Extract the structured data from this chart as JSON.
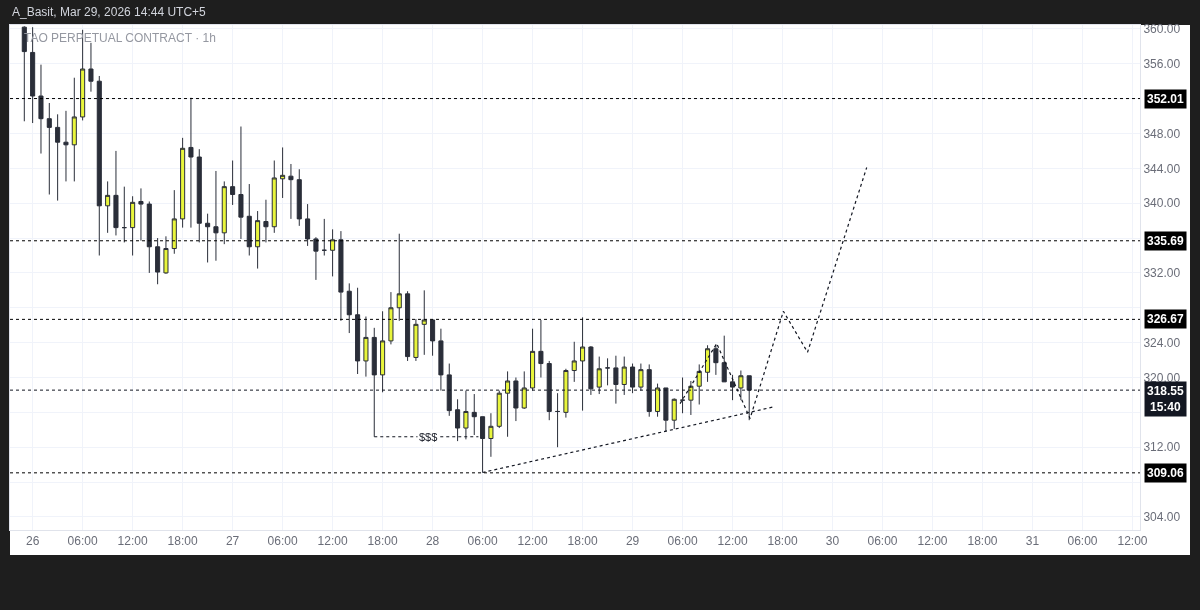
{
  "chart_data": {
    "type": "candlestick",
    "title": "TAO PERPETUAL CONTRACT · 1h",
    "annotations": [
      "A_Basit, Mar 29, 2026 14:44 UTC+5",
      {
        "text": "$$$",
        "x": "2026-03-27T23:30",
        "y": 313.2
      }
    ],
    "x": [
      "2026-03-25T23:00",
      "2026-03-26T00:00",
      "2026-03-26T01:00",
      "2026-03-26T02:00",
      "2026-03-26T03:00",
      "2026-03-26T04:00",
      "2026-03-26T05:00",
      "2026-03-26T06:00",
      "2026-03-26T07:00",
      "2026-03-26T08:00",
      "2026-03-26T09:00",
      "2026-03-26T10:00",
      "2026-03-26T11:00",
      "2026-03-26T12:00",
      "2026-03-26T13:00",
      "2026-03-26T14:00",
      "2026-03-26T15:00",
      "2026-03-26T16:00",
      "2026-03-26T17:00",
      "2026-03-26T18:00",
      "2026-03-26T19:00",
      "2026-03-26T20:00",
      "2026-03-26T21:00",
      "2026-03-26T22:00",
      "2026-03-26T23:00",
      "2026-03-27T00:00",
      "2026-03-27T01:00",
      "2026-03-27T02:00",
      "2026-03-27T03:00",
      "2026-03-27T04:00",
      "2026-03-27T05:00",
      "2026-03-27T06:00",
      "2026-03-27T07:00",
      "2026-03-27T08:00",
      "2026-03-27T09:00",
      "2026-03-27T10:00",
      "2026-03-27T11:00",
      "2026-03-27T12:00",
      "2026-03-27T13:00",
      "2026-03-27T14:00",
      "2026-03-27T15:00",
      "2026-03-27T16:00",
      "2026-03-27T17:00",
      "2026-03-27T18:00",
      "2026-03-27T19:00",
      "2026-03-27T20:00",
      "2026-03-27T21:00",
      "2026-03-27T22:00",
      "2026-03-27T23:00",
      "2026-03-28T00:00",
      "2026-03-28T01:00",
      "2026-03-28T02:00",
      "2026-03-28T03:00",
      "2026-03-28T04:00",
      "2026-03-28T05:00",
      "2026-03-28T06:00",
      "2026-03-28T07:00",
      "2026-03-28T08:00",
      "2026-03-28T09:00",
      "2026-03-28T10:00",
      "2026-03-28T11:00",
      "2026-03-28T12:00",
      "2026-03-28T13:00",
      "2026-03-28T14:00",
      "2026-03-28T15:00",
      "2026-03-28T16:00",
      "2026-03-28T17:00",
      "2026-03-28T18:00",
      "2026-03-28T19:00",
      "2026-03-28T20:00",
      "2026-03-28T21:00",
      "2026-03-28T22:00",
      "2026-03-28T23:00",
      "2026-03-29T00:00",
      "2026-03-29T01:00",
      "2026-03-29T02:00",
      "2026-03-29T03:00",
      "2026-03-29T04:00",
      "2026-03-29T05:00",
      "2026-03-29T06:00",
      "2026-03-29T07:00",
      "2026-03-29T08:00",
      "2026-03-29T09:00",
      "2026-03-29T10:00",
      "2026-03-29T11:00",
      "2026-03-29T12:00",
      "2026-03-29T13:00",
      "2026-03-29T14:00"
    ],
    "ohlc": [
      [
        360.2,
        360.3,
        349.4,
        357.4
      ],
      [
        357.3,
        360.2,
        349.2,
        352.3
      ],
      [
        352.3,
        355.9,
        345.7,
        349.7
      ],
      [
        349.7,
        351.5,
        341.0,
        348.7
      ],
      [
        348.7,
        350.2,
        340.3,
        347.0
      ],
      [
        347.0,
        350.6,
        342.5,
        346.7
      ],
      [
        346.7,
        354.4,
        342.5,
        349.9
      ],
      [
        349.9,
        359.9,
        349.5,
        355.4
      ],
      [
        355.4,
        358.4,
        352.8,
        354.0
      ],
      [
        354.0,
        354.6,
        334.0,
        339.7
      ],
      [
        339.7,
        342.5,
        336.6,
        340.9
      ],
      [
        340.9,
        346.0,
        336.3,
        337.2
      ],
      [
        337.2,
        341.9,
        335.5,
        337.2
      ],
      [
        337.2,
        340.8,
        334.0,
        340.1
      ],
      [
        340.2,
        341.7,
        335.7,
        339.9
      ],
      [
        339.9,
        340.2,
        332.0,
        335.0
      ],
      [
        335.0,
        336.0,
        330.7,
        332.1
      ],
      [
        332.0,
        336.2,
        331.9,
        334.8
      ],
      [
        334.8,
        341.5,
        334.2,
        338.2
      ],
      [
        338.2,
        347.5,
        337.2,
        346.3
      ],
      [
        346.4,
        352.1,
        337.2,
        345.3
      ],
      [
        345.3,
        346.2,
        335.5,
        337.7
      ],
      [
        337.7,
        338.8,
        333.2,
        337.3
      ],
      [
        337.3,
        343.7,
        333.4,
        336.6
      ],
      [
        336.6,
        342.5,
        335.3,
        341.9
      ],
      [
        341.9,
        344.9,
        339.8,
        341.0
      ],
      [
        341.0,
        348.8,
        335.9,
        338.4
      ],
      [
        338.5,
        342.2,
        334.0,
        335.0
      ],
      [
        335.0,
        339.1,
        332.5,
        338.0
      ],
      [
        337.9,
        340.4,
        335.5,
        337.3
      ],
      [
        337.3,
        344.9,
        336.6,
        342.9
      ],
      [
        342.8,
        346.4,
        340.6,
        343.2
      ],
      [
        343.1,
        344.5,
        338.2,
        342.7
      ],
      [
        342.7,
        343.9,
        337.4,
        338.2
      ],
      [
        338.2,
        339.9,
        335.1,
        335.9
      ],
      [
        335.9,
        336.1,
        331.2,
        334.5
      ],
      [
        334.6,
        338.2,
        334.0,
        334.6
      ],
      [
        334.6,
        337.0,
        331.6,
        335.8
      ],
      [
        335.8,
        336.8,
        326.5,
        329.8
      ],
      [
        329.9,
        330.8,
        325.1,
        327.2
      ],
      [
        327.2,
        330.3,
        320.4,
        321.9
      ],
      [
        321.9,
        327.0,
        320.1,
        324.6
      ],
      [
        324.6,
        325.7,
        313.2,
        320.3
      ],
      [
        320.3,
        327.6,
        318.3,
        324.2
      ],
      [
        324.2,
        329.8,
        323.8,
        328.0
      ],
      [
        328.0,
        336.5,
        326.5,
        329.6
      ],
      [
        329.6,
        329.9,
        321.9,
        322.4
      ],
      [
        322.3,
        326.7,
        321.9,
        326.1
      ],
      [
        326.1,
        330.0,
        322.6,
        326.6
      ],
      [
        326.6,
        326.7,
        322.5,
        324.2
      ],
      [
        324.2,
        325.6,
        318.5,
        320.3
      ],
      [
        320.3,
        321.6,
        315.6,
        316.2
      ],
      [
        316.3,
        317.5,
        312.7,
        314.2
      ],
      [
        314.2,
        318.5,
        312.9,
        316.1
      ],
      [
        316.0,
        318.1,
        313.4,
        315.5
      ],
      [
        315.5,
        315.5,
        309.1,
        313.0
      ],
      [
        313.0,
        315.9,
        310.9,
        314.4
      ],
      [
        314.4,
        318.5,
        314.2,
        318.2
      ],
      [
        318.2,
        320.7,
        313.2,
        319.6
      ],
      [
        319.6,
        320.0,
        315.0,
        316.5
      ],
      [
        316.5,
        320.7,
        316.4,
        318.8
      ],
      [
        318.8,
        325.6,
        318.5,
        323.0
      ],
      [
        323.0,
        326.6,
        320.0,
        321.6
      ],
      [
        321.6,
        321.9,
        315.1,
        316.1
      ],
      [
        316.1,
        318.2,
        312.0,
        316.1
      ],
      [
        316.0,
        321.0,
        315.4,
        320.8
      ],
      [
        320.8,
        324.1,
        319.5,
        321.9
      ],
      [
        321.9,
        326.9,
        316.2,
        323.5
      ],
      [
        323.5,
        323.6,
        318.0,
        318.7
      ],
      [
        318.9,
        322.4,
        318.1,
        321.0
      ],
      [
        321.1,
        322.2,
        319.1,
        321.1
      ],
      [
        321.1,
        322.5,
        317.0,
        319.2
      ],
      [
        319.2,
        322.4,
        318.0,
        321.2
      ],
      [
        321.2,
        321.6,
        318.2,
        318.9
      ],
      [
        318.9,
        321.6,
        318.5,
        320.9
      ],
      [
        320.9,
        321.5,
        315.5,
        316.1
      ],
      [
        316.1,
        319.3,
        315.5,
        318.8
      ],
      [
        318.8,
        318.8,
        313.8,
        315.1
      ],
      [
        315.1,
        317.6,
        314.1,
        317.5
      ],
      [
        317.4,
        320.0,
        315.9,
        317.4
      ],
      [
        317.4,
        319.6,
        315.7,
        319.0
      ],
      [
        319.0,
        321.5,
        316.9,
        320.7
      ],
      [
        320.6,
        323.7,
        319.5,
        323.3
      ],
      [
        323.3,
        323.8,
        320.3,
        321.7
      ],
      [
        321.7,
        324.8,
        319.5,
        319.5
      ],
      [
        319.5,
        320.3,
        317.4,
        318.9
      ],
      [
        318.8,
        320.8,
        317.4,
        320.2
      ],
      [
        320.2,
        320.2,
        315.1,
        318.55
      ]
    ],
    "colors": [
      "#2a2e39",
      "#2a2e39",
      "#2a2e39",
      "#2a2e39",
      "#2a2e39",
      "#2a2e39",
      "#e8f53c",
      "#e8f53c",
      "#2a2e39",
      "#2a2e39",
      "#e8f53c",
      "#2a2e39",
      "#2a2e39",
      "#e8f53c",
      "#2a2e39",
      "#2a2e39",
      "#2a2e39",
      "#e8f53c",
      "#e8f53c",
      "#e8f53c",
      "#2a2e39",
      "#2a2e39",
      "#2a2e39",
      "#2a2e39",
      "#e8f53c",
      "#2a2e39",
      "#2a2e39",
      "#2a2e39",
      "#e8f53c",
      "#2a2e39",
      "#e8f53c",
      "#e8f53c",
      "#2a2e39",
      "#2a2e39",
      "#2a2e39",
      "#2a2e39",
      "#2a2e39",
      "#e8f53c",
      "#2a2e39",
      "#2a2e39",
      "#2a2e39",
      "#e8f53c",
      "#2a2e39",
      "#e8f53c",
      "#e8f53c",
      "#e8f53c",
      "#2a2e39",
      "#e8f53c",
      "#e8f53c",
      "#2a2e39",
      "#2a2e39",
      "#2a2e39",
      "#2a2e39",
      "#e8f53c",
      "#2a2e39",
      "#2a2e39",
      "#e8f53c",
      "#e8f53c",
      "#e8f53c",
      "#2a2e39",
      "#e8f53c",
      "#e8f53c",
      "#2a2e39",
      "#2a2e39",
      "#2a2e39",
      "#e8f53c",
      "#e8f53c",
      "#e8f53c",
      "#2a2e39",
      "#e8f53c",
      "#2a2e39",
      "#2a2e39",
      "#e8f53c",
      "#2a2e39",
      "#e8f53c",
      "#2a2e39",
      "#e8f53c",
      "#2a2e39",
      "#e8f53c",
      "#2a2e39",
      "#e8f53c",
      "#e8f53c",
      "#e8f53c",
      "#2a2e39",
      "#2a2e39",
      "#2a2e39",
      "#e8f53c",
      "#2a2e39"
    ],
    "series": [
      {
        "type": "line",
        "color": "#131722",
        "line_style": "dotted",
        "x": [
          "2026-03-28T06:00",
          "2026-03-29T16:48"
        ],
        "values": [
          309.1,
          316.6
        ]
      },
      {
        "type": "line",
        "color": "#131722",
        "line_style": "dotted",
        "x": [
          "2026-03-27T17:00",
          "2026-03-28T05:30"
        ],
        "values": [
          313.2,
          313.2
        ]
      },
      {
        "type": "line",
        "color": "#131722",
        "line_style": "dotted",
        "x": [
          "2026-03-29T05:42",
          "2026-03-29T10:06",
          "2026-03-29T14:06",
          "2026-03-29T18:06",
          "2026-03-29T21:00",
          "2026-03-30T04:06"
        ],
        "values": [
          317.0,
          323.9,
          315.3,
          327.6,
          322.9,
          344.1
        ]
      }
    ],
    "ref_lines": [
      {
        "axis": "y",
        "value": 352.01,
        "label": "352.01",
        "color": "#000000",
        "line_style": "dotted"
      },
      {
        "axis": "y",
        "value": 335.69,
        "label": "335.69",
        "color": "#000000",
        "line_style": "dotted"
      },
      {
        "axis": "y",
        "value": 326.67,
        "label": "326.67",
        "color": "#000000",
        "line_style": "dotted"
      },
      {
        "axis": "y",
        "value": 318.55,
        "label": "318.55\n15:40",
        "color": "#131722",
        "line_style": "dotted"
      },
      {
        "axis": "y",
        "value": 309.06,
        "label": "309.06",
        "color": "#000000",
        "line_style": "dotted"
      }
    ],
    "xlim": [
      "2026-03-25T21:17",
      "2026-03-31T12:54"
    ],
    "xticks": [
      {
        "value": "2026-03-26T00:00",
        "label": "26"
      },
      {
        "value": "2026-03-26T06:00",
        "label": "06:00"
      },
      {
        "value": "2026-03-26T12:00",
        "label": "12:00"
      },
      {
        "value": "2026-03-26T18:00",
        "label": "18:00"
      },
      {
        "value": "2026-03-27T00:00",
        "label": "27"
      },
      {
        "value": "2026-03-27T06:00",
        "label": "06:00"
      },
      {
        "value": "2026-03-27T12:00",
        "label": "12:00"
      },
      {
        "value": "2026-03-27T18:00",
        "label": "18:00"
      },
      {
        "value": "2026-03-28T00:00",
        "label": "28"
      },
      {
        "value": "2026-03-28T06:00",
        "label": "06:00"
      },
      {
        "value": "2026-03-28T12:00",
        "label": "12:00"
      },
      {
        "value": "2026-03-28T18:00",
        "label": "18:00"
      },
      {
        "value": "2026-03-29T00:00",
        "label": "29"
      },
      {
        "value": "2026-03-29T06:00",
        "label": "06:00"
      },
      {
        "value": "2026-03-29T12:00",
        "label": "12:00"
      },
      {
        "value": "2026-03-29T18:00",
        "label": "18:00"
      },
      {
        "value": "2026-03-30T00:00",
        "label": "30"
      },
      {
        "value": "2026-03-30T06:00",
        "label": "06:00"
      },
      {
        "value": "2026-03-30T12:00",
        "label": "12:00"
      },
      {
        "value": "2026-03-30T18:00",
        "label": "18:00"
      },
      {
        "value": "2026-03-31T00:00",
        "label": "31"
      },
      {
        "value": "2026-03-31T06:00",
        "label": "06:00"
      },
      {
        "value": "2026-03-31T12:00",
        "label": "12:00"
      }
    ],
    "ylim": [
      302.5,
      360.45
    ],
    "yticks": [
      {
        "value": 304,
        "label": "304.00"
      },
      {
        "value": 308,
        "label": null
      },
      {
        "value": 312,
        "label": "312.00"
      },
      {
        "value": 316,
        "label": null
      },
      {
        "value": 320,
        "label": "320.00"
      },
      {
        "value": 324,
        "label": "324.00"
      },
      {
        "value": 328,
        "label": null
      },
      {
        "value": 332,
        "label": "332.00"
      },
      {
        "value": 336,
        "label": null
      },
      {
        "value": 340,
        "label": "340.00"
      },
      {
        "value": 344,
        "label": "344.00"
      },
      {
        "value": 348,
        "label": "348.00"
      },
      {
        "value": 352,
        "label": null
      },
      {
        "value": 356,
        "label": "356.00"
      },
      {
        "value": 360,
        "label": "360.00"
      }
    ],
    "grid": true
  }
}
